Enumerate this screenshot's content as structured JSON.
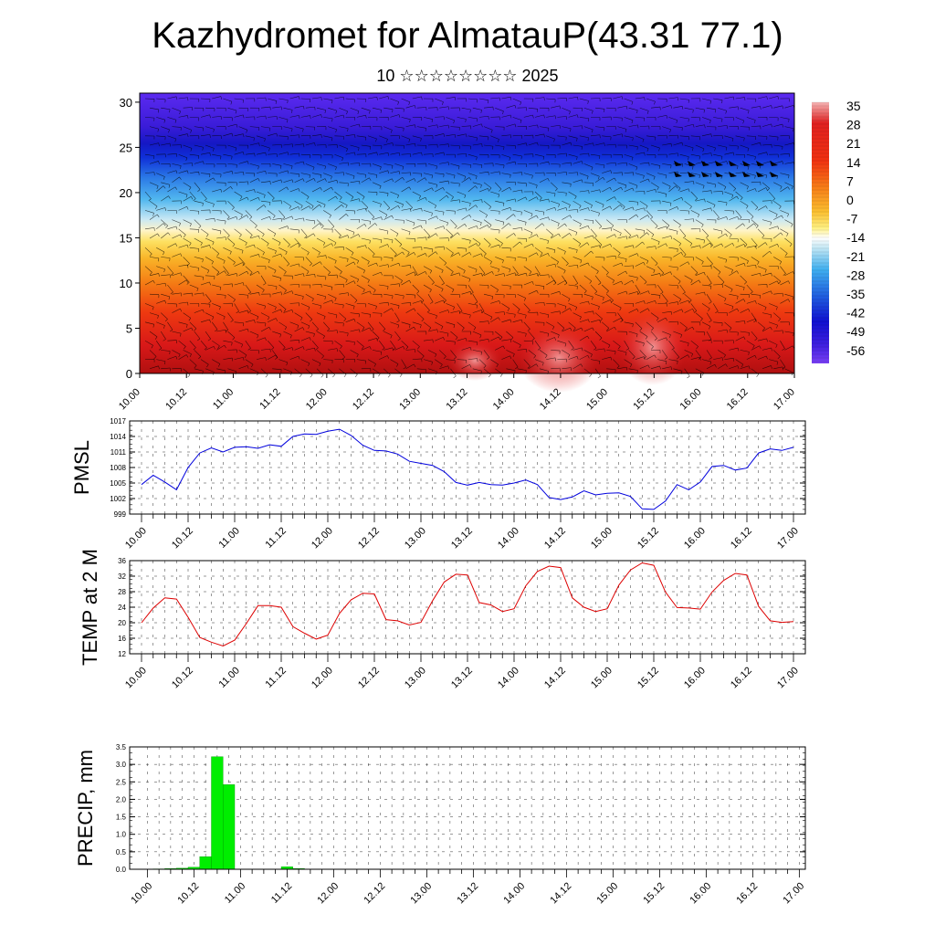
{
  "title": "Kazhydromet for AlmatauP(43.31 77.1)",
  "subtitle": "10 ☆☆☆☆☆☆☆☆ 2025",
  "colors": {
    "pmsl_line": "#0000dd",
    "temp_line": "#dd0000",
    "precip_bar": "#00ee00",
    "precip_bar_stroke": "#009900"
  },
  "time_labels": [
    "10.00",
    "10.12",
    "11.00",
    "11.12",
    "12.00",
    "12.12",
    "13.00",
    "13.12",
    "14.00",
    "14.12",
    "15.00",
    "15.12",
    "16.00",
    "16.12",
    "17.00"
  ],
  "chart_data": [
    {
      "type": "heatmap",
      "title": "",
      "y_ticks": [
        "0",
        "5",
        "10",
        "15",
        "20",
        "25",
        "30"
      ],
      "ylim": [
        0,
        31
      ],
      "x_ticks": [
        "10.00",
        "10.12",
        "11.00",
        "11.12",
        "12.00",
        "12.12",
        "13.00",
        "13.12",
        "14.00",
        "14.12",
        "15.00",
        "15.12",
        "16.00",
        "16.12",
        "17.00"
      ],
      "colorbar_labels": [
        "35",
        "28",
        "21",
        "14",
        "7",
        "0",
        "-7",
        "-14",
        "-21",
        "-28",
        "-35",
        "-42",
        "-49",
        "-56"
      ],
      "colorbar_range": [
        -60,
        38
      ],
      "overlay": "wind barbs"
    },
    {
      "type": "line",
      "ylabel": "PMSL",
      "ylim": [
        999,
        1017
      ],
      "y_ticks": [
        "1017",
        "1014",
        "1011",
        "1008",
        "1005",
        "1002",
        "999"
      ],
      "x_ticks": [
        "10.00",
        "10.12",
        "11.00",
        "11.12",
        "12.00",
        "12.12",
        "13.00",
        "13.12",
        "14.00",
        "14.12",
        "15.00",
        "15.12",
        "16.00",
        "16.12",
        "17.00"
      ],
      "values": [
        1004.7,
        1006.5,
        1005.2,
        1003.7,
        1008.0,
        1010.8,
        1011.8,
        1011.0,
        1011.9,
        1012.0,
        1011.7,
        1012.4,
        1012.1,
        1014.0,
        1014.5,
        1014.4,
        1015.0,
        1015.4,
        1014.2,
        1012.3,
        1011.3,
        1011.2,
        1010.6,
        1009.2,
        1008.8,
        1008.4,
        1007.2,
        1005.1,
        1004.6,
        1005.1,
        1004.7,
        1004.6,
        1005.0,
        1005.6,
        1004.7,
        1002.2,
        1001.8,
        1002.3,
        1003.5,
        1002.7,
        1003.0,
        1003.1,
        1002.4,
        1000.0,
        999.9,
        1001.5,
        1004.7,
        1003.7,
        1005.2,
        1008.2,
        1008.4,
        1007.5,
        1007.9,
        1010.8,
        1011.6,
        1011.3,
        1011.9
      ],
      "step_hours": 3
    },
    {
      "type": "line",
      "ylabel": "TEMP at 2 M",
      "ylim": [
        12,
        36
      ],
      "y_ticks": [
        "36",
        "32",
        "28",
        "24",
        "20",
        "16",
        "12"
      ],
      "x_ticks": [
        "10.00",
        "10.12",
        "11.00",
        "11.12",
        "12.00",
        "12.12",
        "13.00",
        "13.12",
        "14.00",
        "14.12",
        "15.00",
        "15.12",
        "16.00",
        "16.12",
        "17.00"
      ],
      "values": [
        20.0,
        23.8,
        26.4,
        26.1,
        21.4,
        16.2,
        15.0,
        14.0,
        15.5,
        19.8,
        24.4,
        24.4,
        24.0,
        19.0,
        17.3,
        15.8,
        16.8,
        22.4,
        25.9,
        27.6,
        27.4,
        20.8,
        20.5,
        19.4,
        20.1,
        25.7,
        30.5,
        32.5,
        32.3,
        25.2,
        24.6,
        22.9,
        23.6,
        29.5,
        33.2,
        34.6,
        34.2,
        26.4,
        24.0,
        22.9,
        23.6,
        29.7,
        33.6,
        35.4,
        34.8,
        27.9,
        23.9,
        23.8,
        23.5,
        27.9,
        30.9,
        32.7,
        32.3,
        24.2,
        20.5,
        20.1,
        20.3
      ],
      "step_hours": 3
    },
    {
      "type": "bar",
      "ylabel": "PRECIP, mm",
      "ylim": [
        0,
        3.5
      ],
      "y_ticks": [
        "3.5",
        "3.0",
        "2.5",
        "2.0",
        "1.5",
        "1.0",
        "0.5",
        "0.0"
      ],
      "x_ticks": [
        "10.00",
        "10.12",
        "11.00",
        "11.12",
        "12.00",
        "12.12",
        "13.00",
        "13.12",
        "14.00",
        "14.12",
        "15.00",
        "15.12",
        "16.00",
        "16.12",
        "17.00"
      ],
      "values": [
        0,
        0.01,
        0.02,
        0.03,
        0.06,
        0.36,
        3.22,
        2.42,
        0,
        0,
        0,
        0,
        0.07,
        0.02,
        0,
        0,
        0,
        0,
        0,
        0,
        0,
        0,
        0,
        0,
        0,
        0,
        0,
        0,
        0,
        0,
        0,
        0,
        0,
        0,
        0,
        0,
        0,
        0,
        0,
        0,
        0,
        0,
        0,
        0,
        0,
        0,
        0,
        0,
        0,
        0,
        0,
        0,
        0,
        0,
        0,
        0,
        0
      ],
      "step_hours": 3
    }
  ]
}
